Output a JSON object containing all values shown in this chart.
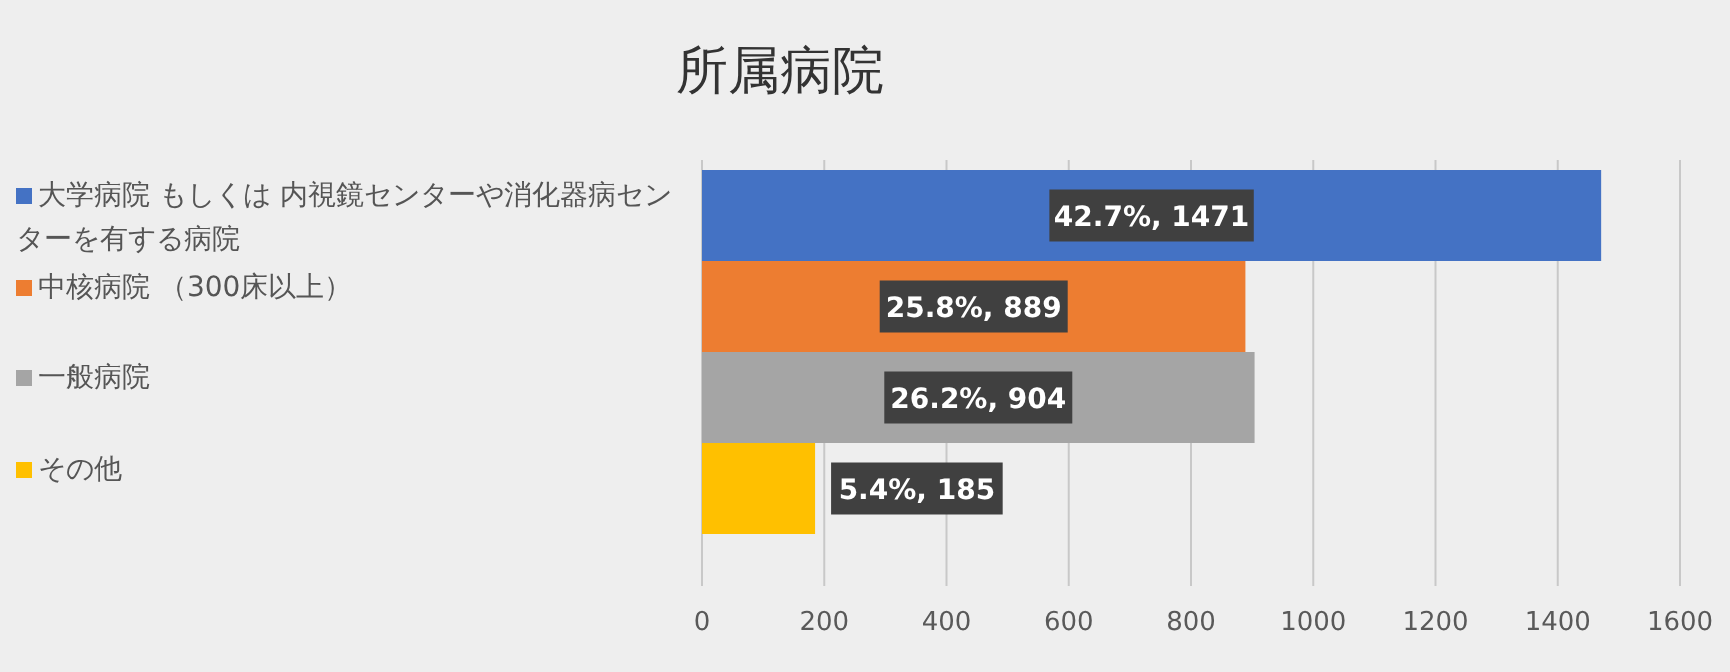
{
  "chart_data": {
    "type": "bar",
    "orientation": "horizontal",
    "title": "所属病院",
    "categories": [
      null
    ],
    "series": [
      {
        "name": "大学病院 もしくは 内視鏡センターや消化器病センターを有する病院",
        "color": "#4472c4",
        "values": [
          1471
        ],
        "value_labels": [
          "42.7%, 1471"
        ]
      },
      {
        "name": "中核病院 （300床以上）",
        "color": "#ed7d31",
        "values": [
          889
        ],
        "value_labels": [
          "25.8%, 889"
        ]
      },
      {
        "name": "一般病院",
        "color": "#a5a5a5",
        "values": [
          904
        ],
        "value_labels": [
          "26.2%, 904"
        ]
      },
      {
        "name": "その他",
        "color": "#ffc000",
        "values": [
          185
        ],
        "value_labels": [
          "5.4%, 185"
        ]
      }
    ],
    "xlim": [
      0,
      1600
    ],
    "xticks": [
      0,
      200,
      400,
      600,
      800,
      1000,
      1200,
      1400,
      1600
    ],
    "grid": "x",
    "legend": "left"
  }
}
